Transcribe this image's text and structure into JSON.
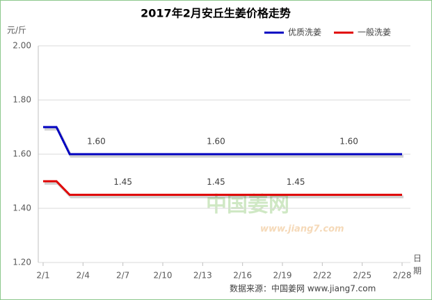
{
  "chart_data": {
    "type": "line",
    "title": "2017年2月安丘生姜价格走势",
    "y_label": "元/斤",
    "x_label": "日期",
    "categories": [
      "2/1",
      null,
      null,
      "2/4",
      null,
      null,
      "2/7",
      null,
      null,
      "2/10",
      null,
      null,
      "2/13",
      null,
      null,
      "2/16",
      null,
      null,
      "2/19",
      null,
      null,
      "2/22",
      null,
      null,
      "2/25",
      null,
      null,
      "2/28"
    ],
    "series": [
      {
        "name": "优质洗姜",
        "color": "#0000c0",
        "values": [
          1.7,
          1.7,
          1.6,
          1.6,
          1.6,
          1.6,
          1.6,
          1.6,
          1.6,
          1.6,
          1.6,
          1.6,
          1.6,
          1.6,
          1.6,
          1.6,
          1.6,
          1.6,
          1.6,
          1.6,
          1.6,
          1.6,
          1.6,
          1.6,
          1.6,
          1.6,
          1.6,
          1.6
        ],
        "value_labels": [
          null,
          null,
          null,
          null,
          "1.60",
          null,
          null,
          null,
          null,
          null,
          null,
          null,
          null,
          "1.60",
          null,
          null,
          null,
          null,
          null,
          null,
          null,
          null,
          null,
          "1.60",
          null,
          null,
          null,
          null
        ]
      },
      {
        "name": "一般洗姜",
        "color": "#e00000",
        "values": [
          1.5,
          1.5,
          1.45,
          1.45,
          1.45,
          1.45,
          1.45,
          1.45,
          1.45,
          1.45,
          1.45,
          1.45,
          1.45,
          1.45,
          1.45,
          1.45,
          1.45,
          1.45,
          1.45,
          1.45,
          1.45,
          1.45,
          1.45,
          1.45,
          1.45,
          1.45,
          1.45,
          1.45
        ],
        "value_labels": [
          null,
          null,
          null,
          null,
          null,
          null,
          "1.45",
          null,
          null,
          null,
          null,
          null,
          null,
          "1.45",
          null,
          null,
          null,
          null,
          null,
          "1.45",
          null,
          null,
          null,
          null,
          null,
          null,
          null,
          null
        ]
      }
    ],
    "ylim": [
      1.2,
      2.0
    ],
    "yticks": [
      {
        "value": 1.2,
        "label": "1.20"
      },
      {
        "value": 1.4,
        "label": "1.40"
      },
      {
        "value": 1.6,
        "label": "1.60"
      },
      {
        "value": 1.8,
        "label": "1.80"
      },
      {
        "value": 2.0,
        "label": "2.00"
      }
    ],
    "grid": true,
    "legend": "top-right",
    "watermark": [
      "中国姜网",
      "www.jiang7.com"
    ],
    "source": "数据来源：中国姜网 www.jiang7.com"
  }
}
